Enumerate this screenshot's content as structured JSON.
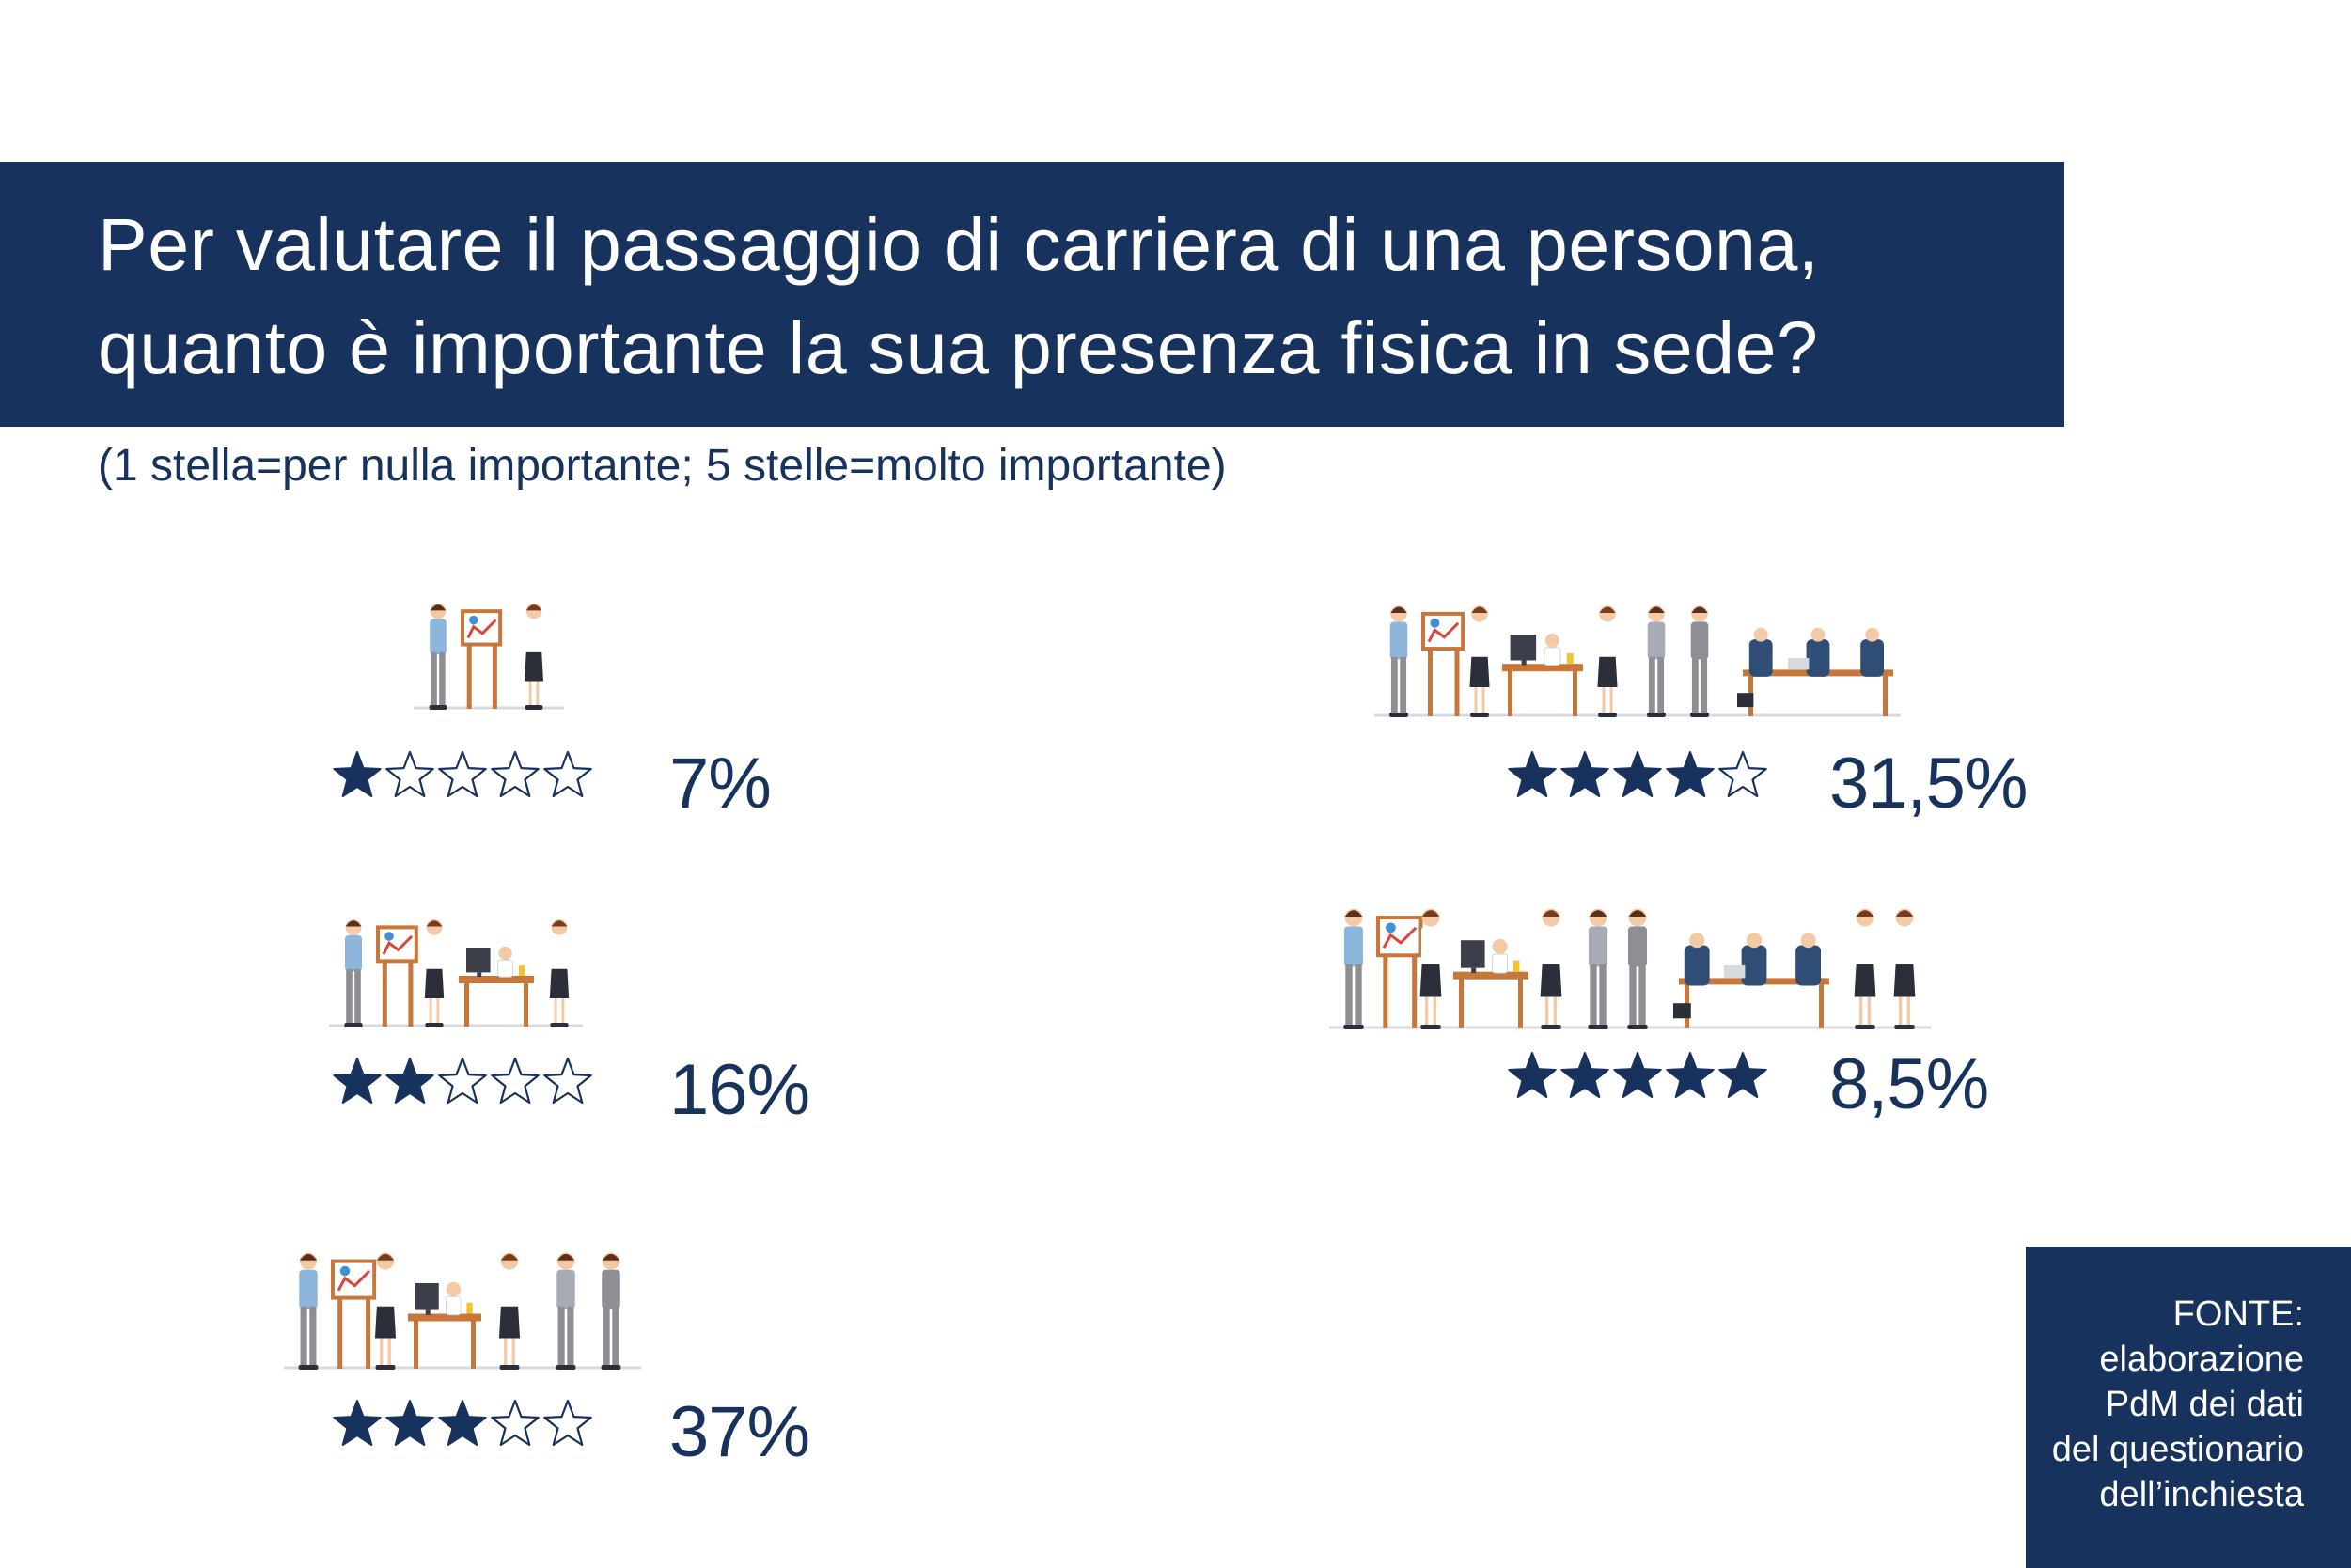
{
  "title": {
    "line1": "Per valutare il passaggio di carriera di una persona,",
    "line2": "quanto è importante la sua presenza fisica in sede?"
  },
  "subtitle": "(1 stella=per nulla importante; 5 stelle=molto importante)",
  "colors": {
    "navy": "#17325c",
    "white": "#ffffff"
  },
  "chart_data": {
    "type": "bar",
    "categories": [
      "1 stella",
      "2 stelle",
      "3 stelle",
      "4 stelle",
      "5 stelle"
    ],
    "stars_filled": [
      1,
      2,
      3,
      4,
      5
    ],
    "stars_total": 5,
    "values": [
      7,
      16,
      37,
      31.5,
      8.5
    ],
    "value_labels": [
      "7%",
      "16%",
      "37%",
      "31,5%",
      "8,5%"
    ],
    "icons": [
      "office-people-icon",
      "office-people-icon",
      "office-people-icon",
      "office-people-icon",
      "office-people-icon"
    ]
  },
  "source": {
    "lines": [
      "FONTE:",
      "elaborazione",
      "PdM dei dati",
      "del questionario",
      "dell’inchiesta"
    ]
  }
}
